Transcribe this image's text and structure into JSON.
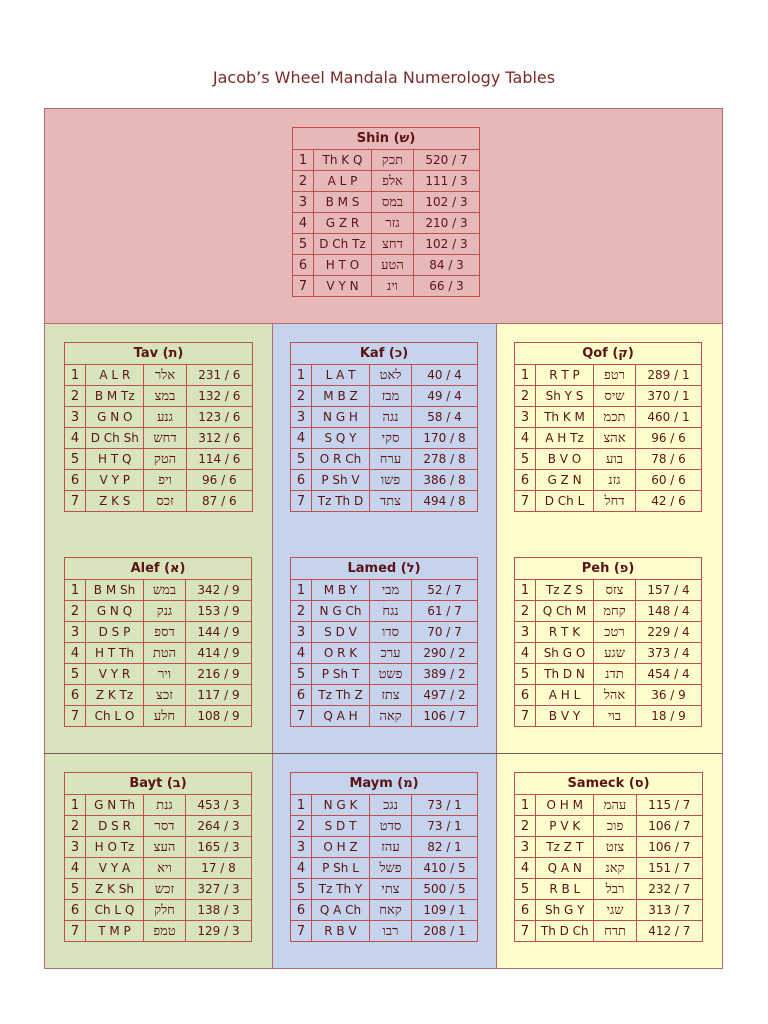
{
  "title": "Jacob’s Wheel Mandala Numerology Tables",
  "tables": {
    "shin": {
      "title": "Shin (ש)",
      "rows": [
        {
          "n": "1",
          "lat": "Th K Q",
          "heb": "תכק",
          "val": "520 / 7"
        },
        {
          "n": "2",
          "lat": "A L P",
          "heb": "אלפ",
          "val": "111 / 3"
        },
        {
          "n": "3",
          "lat": "B M S",
          "heb": "במס",
          "val": "102 / 3"
        },
        {
          "n": "4",
          "lat": "G Z R",
          "heb": "גזר",
          "val": "210 / 3"
        },
        {
          "n": "5",
          "lat": "D Ch Tz",
          "heb": "דחצ",
          "val": "102 / 3"
        },
        {
          "n": "6",
          "lat": "H T O",
          "heb": "הטע",
          "val": "84 / 3"
        },
        {
          "n": "7",
          "lat": "V Y N",
          "heb": "וינ",
          "val": "66 / 3"
        }
      ]
    },
    "tav": {
      "title": "Tav (ת)",
      "rows": [
        {
          "n": "1",
          "lat": "A L R",
          "heb": "אלר",
          "val": "231 / 6"
        },
        {
          "n": "2",
          "lat": "B M Tz",
          "heb": "במצ",
          "val": "132 / 6"
        },
        {
          "n": "3",
          "lat": "G N O",
          "heb": "גנע",
          "val": "123 / 6"
        },
        {
          "n": "4",
          "lat": "D Ch Sh",
          "heb": "דחש",
          "val": "312 / 6"
        },
        {
          "n": "5",
          "lat": "H T Q",
          "heb": "הטק",
          "val": "114 / 6"
        },
        {
          "n": "6",
          "lat": "V Y P",
          "heb": "ויפ",
          "val": "96 / 6"
        },
        {
          "n": "7",
          "lat": "Z K S",
          "heb": "זכס",
          "val": "87 / 6"
        }
      ]
    },
    "kaf": {
      "title": "Kaf (כ)",
      "rows": [
        {
          "n": "1",
          "lat": "L A T",
          "heb": "לאט",
          "val": "40 / 4"
        },
        {
          "n": "2",
          "lat": "M B Z",
          "heb": "מבז",
          "val": "49 / 4"
        },
        {
          "n": "3",
          "lat": "N G H",
          "heb": "נגה",
          "val": "58 / 4"
        },
        {
          "n": "4",
          "lat": "S Q Y",
          "heb": "סקי",
          "val": "170 / 8"
        },
        {
          "n": "5",
          "lat": "O R Ch",
          "heb": "ערח",
          "val": "278 / 8"
        },
        {
          "n": "6",
          "lat": "P Sh V",
          "heb": "פשו",
          "val": "386 / 8"
        },
        {
          "n": "7",
          "lat": "Tz Th D",
          "heb": "צתד",
          "val": "494 / 8"
        }
      ]
    },
    "qof": {
      "title": "Qof (ק)",
      "rows": [
        {
          "n": "1",
          "lat": "R T P",
          "heb": "רטפ",
          "val": "289 / 1"
        },
        {
          "n": "2",
          "lat": "Sh Y S",
          "heb": "שיס",
          "val": "370 / 1"
        },
        {
          "n": "3",
          "lat": "Th K M",
          "heb": "תכמ",
          "val": "460 / 1"
        },
        {
          "n": "4",
          "lat": "A H Tz",
          "heb": "אהצ",
          "val": "96 / 6"
        },
        {
          "n": "5",
          "lat": "B V O",
          "heb": "בוע",
          "val": "78 / 6"
        },
        {
          "n": "6",
          "lat": "G Z N",
          "heb": "גזנ",
          "val": "60 / 6"
        },
        {
          "n": "7",
          "lat": "D Ch L",
          "heb": "דחל",
          "val": "42 / 6"
        }
      ]
    },
    "alef": {
      "title": "Alef (א)",
      "rows": [
        {
          "n": "1",
          "lat": "B M Sh",
          "heb": "במש",
          "val": "342 / 9"
        },
        {
          "n": "2",
          "lat": "G N Q",
          "heb": "גנק",
          "val": "153 / 9"
        },
        {
          "n": "3",
          "lat": "D S P",
          "heb": "דספ",
          "val": "144 / 9"
        },
        {
          "n": "4",
          "lat": "H T Th",
          "heb": "הטת",
          "val": "414 / 9"
        },
        {
          "n": "5",
          "lat": "V Y R",
          "heb": "ויר",
          "val": "216 / 9"
        },
        {
          "n": "6",
          "lat": "Z K Tz",
          "heb": "זכצ",
          "val": "117 / 9"
        },
        {
          "n": "7",
          "lat": "Ch L O",
          "heb": "חלע",
          "val": "108 / 9"
        }
      ]
    },
    "lamed": {
      "title": "Lamed (ל)",
      "rows": [
        {
          "n": "1",
          "lat": "M B Y",
          "heb": "מבי",
          "val": "52 / 7"
        },
        {
          "n": "2",
          "lat": "N G Ch",
          "heb": "נגח",
          "val": "61 / 7"
        },
        {
          "n": "3",
          "lat": "S D V",
          "heb": "סדו",
          "val": "70 / 7"
        },
        {
          "n": "4",
          "lat": "O R K",
          "heb": "ערכ",
          "val": "290 / 2"
        },
        {
          "n": "5",
          "lat": "P Sh T",
          "heb": "פשט",
          "val": "389 / 2"
        },
        {
          "n": "6",
          "lat": "Tz Th Z",
          "heb": "צתז",
          "val": "497 / 2"
        },
        {
          "n": "7",
          "lat": "Q A H",
          "heb": "קאה",
          "val": "106 / 7"
        }
      ]
    },
    "peh": {
      "title": "Peh (פ)",
      "rows": [
        {
          "n": "1",
          "lat": "Tz Z S",
          "heb": "צזס",
          "val": "157 / 4"
        },
        {
          "n": "2",
          "lat": "Q Ch M",
          "heb": "קחמ",
          "val": "148 / 4"
        },
        {
          "n": "3",
          "lat": "R T K",
          "heb": "רטכ",
          "val": "229 / 4"
        },
        {
          "n": "4",
          "lat": "Sh G O",
          "heb": "שגע",
          "val": "373 / 4"
        },
        {
          "n": "5",
          "lat": "Th D N",
          "heb": "תדנ",
          "val": "454 / 4"
        },
        {
          "n": "6",
          "lat": "A H L",
          "heb": "אהל",
          "val": "36 / 9"
        },
        {
          "n": "7",
          "lat": "B V Y",
          "heb": "בוי",
          "val": "18 / 9"
        }
      ]
    },
    "bayt": {
      "title": "Bayt (ב)",
      "rows": [
        {
          "n": "1",
          "lat": "G N Th",
          "heb": "גנת",
          "val": "453 / 3"
        },
        {
          "n": "2",
          "lat": "D S R",
          "heb": "דסר",
          "val": "264 / 3"
        },
        {
          "n": "3",
          "lat": "H O Tz",
          "heb": "העצ",
          "val": "165 / 3"
        },
        {
          "n": "4",
          "lat": "V Y A",
          "heb": "ויא",
          "val": "17 / 8"
        },
        {
          "n": "5",
          "lat": "Z K Sh",
          "heb": "זכש",
          "val": "327 / 3"
        },
        {
          "n": "6",
          "lat": "Ch L Q",
          "heb": "חלק",
          "val": "138 / 3"
        },
        {
          "n": "7",
          "lat": "T M P",
          "heb": "טמפ",
          "val": "129 / 3"
        }
      ]
    },
    "maym": {
      "title": "Maym (מ)",
      "rows": [
        {
          "n": "1",
          "lat": "N G K",
          "heb": "נגכ",
          "val": "73 / 1"
        },
        {
          "n": "2",
          "lat": "S D T",
          "heb": "סדט",
          "val": "73 / 1"
        },
        {
          "n": "3",
          "lat": "O H Z",
          "heb": "עהז",
          "val": "82 / 1"
        },
        {
          "n": "4",
          "lat": "P Sh L",
          "heb": "פשל",
          "val": "410 / 5"
        },
        {
          "n": "5",
          "lat": "Tz Th Y",
          "heb": "צתי",
          "val": "500 / 5"
        },
        {
          "n": "6",
          "lat": "Q A Ch",
          "heb": "קאח",
          "val": "109 / 1"
        },
        {
          "n": "7",
          "lat": "R B V",
          "heb": "רבו",
          "val": "208 / 1"
        }
      ]
    },
    "sameck": {
      "title": "Sameck (ס)",
      "rows": [
        {
          "n": "1",
          "lat": "O H M",
          "heb": "עהמ",
          "val": "115 / 7"
        },
        {
          "n": "2",
          "lat": "P V K",
          "heb": "פוכ",
          "val": "106 / 7"
        },
        {
          "n": "3",
          "lat": "Tz Z T",
          "heb": "צזט",
          "val": "106 / 7"
        },
        {
          "n": "4",
          "lat": "Q A N",
          "heb": "קאנ",
          "val": "151 / 7"
        },
        {
          "n": "5",
          "lat": "R B L",
          "heb": "רבל",
          "val": "232 / 7"
        },
        {
          "n": "6",
          "lat": "Sh G Y",
          "heb": "שגי",
          "val": "313 / 7"
        },
        {
          "n": "7",
          "lat": "Th D Ch",
          "heb": "תדח",
          "val": "412 / 7"
        }
      ]
    }
  }
}
